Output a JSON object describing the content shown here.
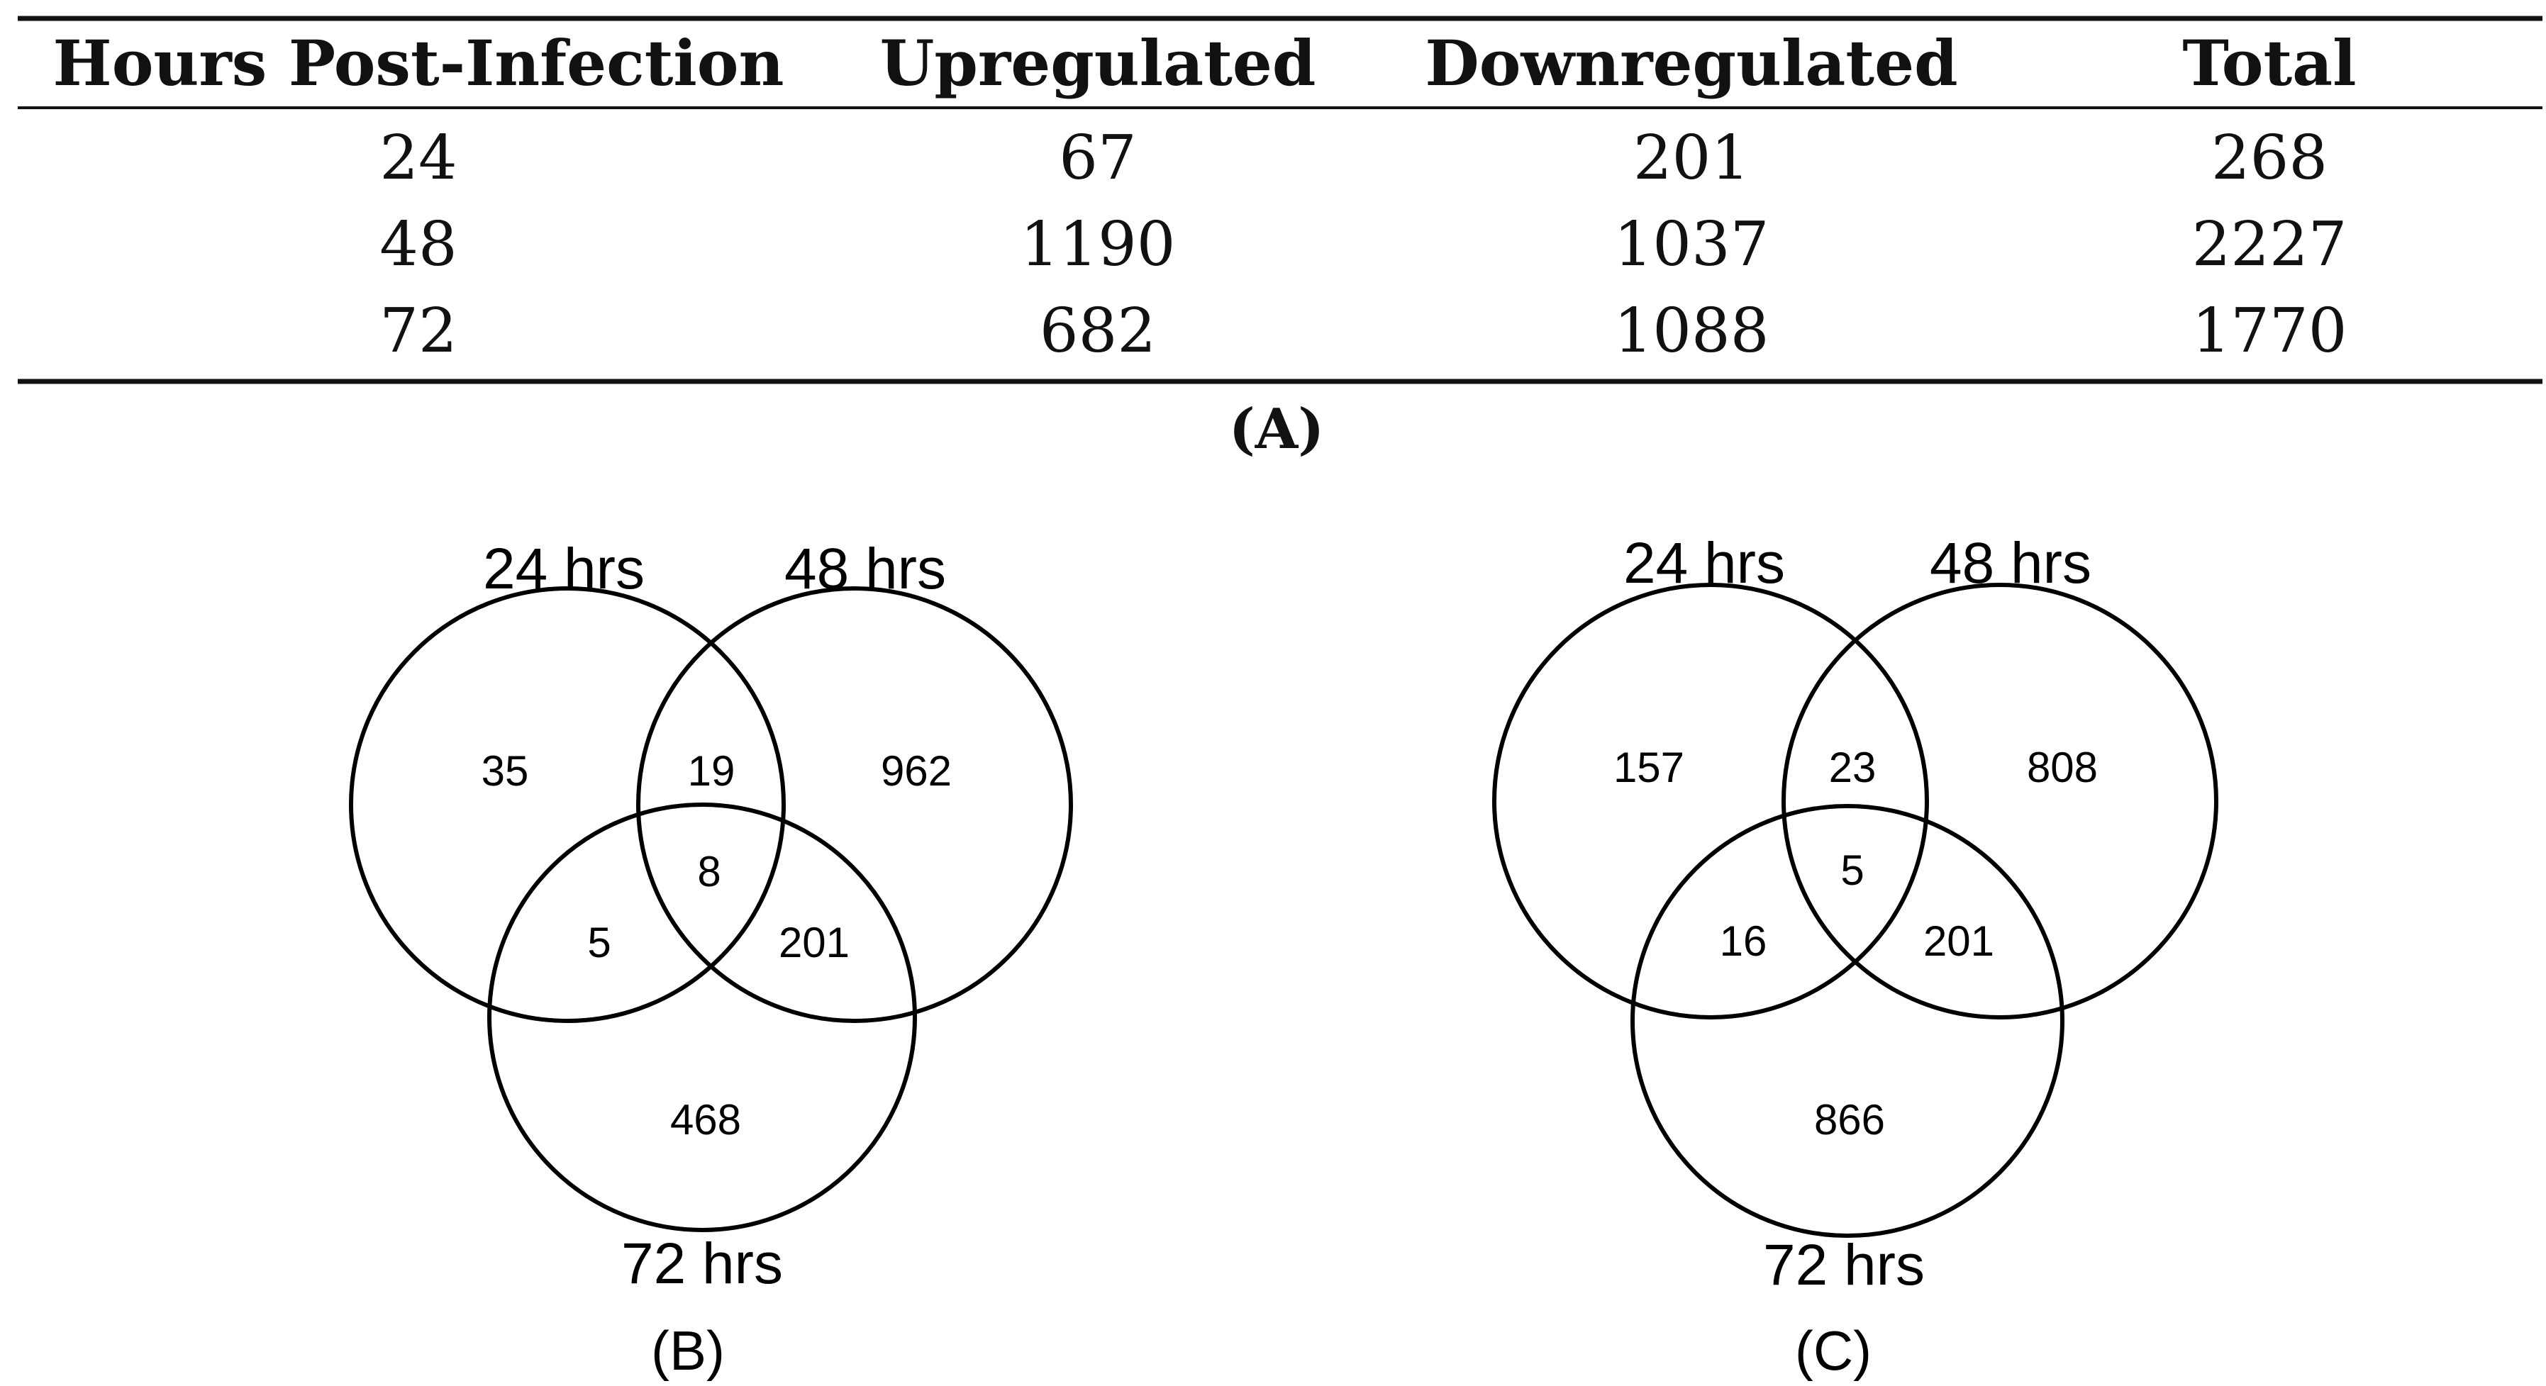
{
  "table": {
    "headers": [
      "Hours Post-Infection",
      "Upregulated",
      "Downregulated",
      "Total"
    ],
    "rows": [
      [
        "24",
        "67",
        "201",
        "268"
      ],
      [
        "48",
        "1190",
        "1037",
        "2227"
      ],
      [
        "72",
        "682",
        "1088",
        "1770"
      ]
    ],
    "caption": "(A)"
  },
  "venn_b": {
    "label_24": "24 hrs",
    "label_48": "48 hrs",
    "label_72": "72 hrs",
    "only_24": "35",
    "only_48": "962",
    "only_72": "468",
    "in_24_48": "19",
    "in_24_72": "5",
    "in_48_72": "201",
    "in_all": "8",
    "caption": "(B)"
  },
  "venn_c": {
    "label_24": "24 hrs",
    "label_48": "48 hrs",
    "label_72": "72 hrs",
    "only_24": "157",
    "only_48": "808",
    "only_72": "866",
    "in_24_48": "23",
    "in_24_72": "16",
    "in_48_72": "201",
    "in_all": "5",
    "caption": "(C)"
  }
}
